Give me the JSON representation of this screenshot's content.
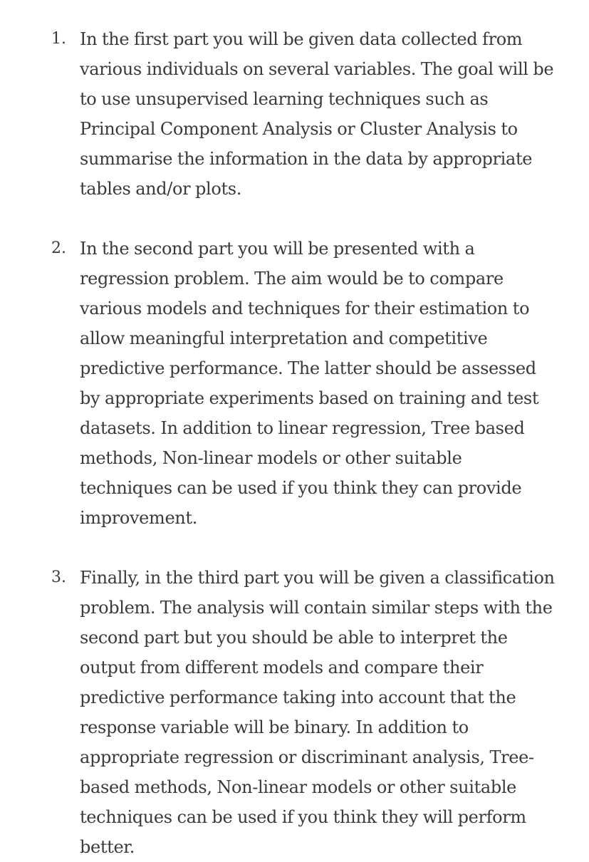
{
  "items": [
    {
      "number": "1.",
      "text": "In the first part you will be given data collected from various individuals on several variables. The goal will be to use unsupervised learning techniques such as Principal Component Analysis or Cluster Analysis to summarise the information in the data by appropriate tables and/or plots."
    },
    {
      "number": "2.",
      "text": "In the second part you will be presented with a regression problem. The aim would be to compare various models and techniques for their estimation to allow meaningful interpretation and competitive predictive performance. The latter should be assessed by appropriate experiments based on training and test datasets. In addition to linear regression, Tree based methods, Non-linear models or other suitable techniques can be used if you think they can provide improvement."
    },
    {
      "number": "3.",
      "text": "Finally, in the third part you will be given a classification problem. The analysis will contain similar steps with the second part but you should be able to interpret the output from different models and compare their predictive performance taking into account that the response variable will be binary. In addition to appropriate regression or discriminant analysis, Tree-based methods, Non-linear models or other suitable techniques can be used if you think they will perform better."
    }
  ]
}
